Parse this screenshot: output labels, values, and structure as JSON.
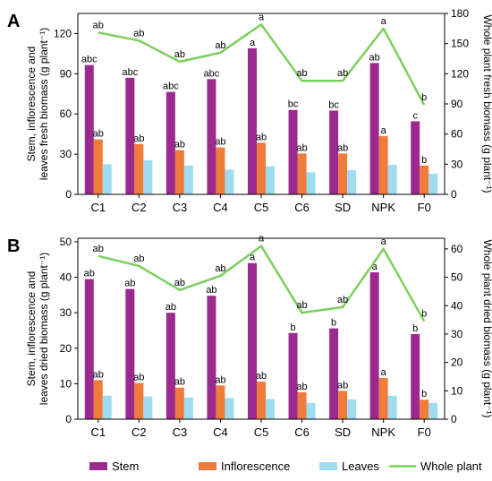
{
  "legend": {
    "items": [
      {
        "label": "Stem",
        "color": "#9b2a8f",
        "kind": "bar"
      },
      {
        "label": "Inflorescence",
        "color": "#f07c3c",
        "kind": "bar"
      },
      {
        "label": "Leaves",
        "color": "#9fdcf2",
        "kind": "bar"
      },
      {
        "label": "Whole plant",
        "color": "#7ccf5c",
        "kind": "line"
      }
    ]
  },
  "chart_data": [
    {
      "type": "bar",
      "panel": "A",
      "categories": [
        "C1",
        "C2",
        "C3",
        "C4",
        "C5",
        "C6",
        "SD",
        "NPK",
        "F0"
      ],
      "ylabel": "Stem, inflorescence and leaves fresh biomass (g plant⁻¹)",
      "y2label": "Whole plant fresh biomass (g plant⁻¹)",
      "ylim": [
        0,
        135
      ],
      "yticks": [
        0,
        30,
        60,
        90,
        120
      ],
      "y2lim": [
        0,
        180
      ],
      "y2ticks": [
        0,
        30,
        60,
        90,
        120,
        150,
        180
      ],
      "series": [
        {
          "name": "Stem",
          "values": [
            96.5,
            87,
            76.5,
            86,
            109,
            63,
            62.5,
            98,
            54.5
          ],
          "labels": [
            "abc",
            "abc",
            "abc",
            "abc",
            "a",
            "bc",
            "bc",
            "ab",
            "c"
          ]
        },
        {
          "name": "Inflorescence",
          "values": [
            41,
            37.5,
            33,
            35,
            38.5,
            30.5,
            30.5,
            43.5,
            21.5
          ],
          "labels": [
            "ab",
            "ab",
            "ab",
            "ab",
            "ab",
            "ab",
            "ab",
            "a",
            "b"
          ]
        },
        {
          "name": "Leaves",
          "values": [
            22.5,
            25.5,
            21.5,
            18.5,
            21,
            16.5,
            18,
            22,
            15.5
          ]
        },
        {
          "name": "Whole plant",
          "axis": "right",
          "values": [
            161,
            153,
            132,
            141,
            169,
            113,
            113,
            165,
            89
          ],
          "labels": [
            "ab",
            "ab",
            "ab",
            "ab",
            "a",
            "ab",
            "ab",
            "a",
            "b"
          ]
        }
      ]
    },
    {
      "type": "bar",
      "panel": "B",
      "categories": [
        "C1",
        "C2",
        "C3",
        "C4",
        "C5",
        "C6",
        "SD",
        "NPK",
        "F0"
      ],
      "ylabel": "Stem, inflorescence and leaves dried biomass (g plant⁻¹)",
      "y2label": "Whole plant dried biomass (g plant⁻¹)",
      "ylim": [
        0,
        51
      ],
      "yticks": [
        0,
        10,
        20,
        30,
        40,
        50
      ],
      "y2lim": [
        0,
        63.75
      ],
      "y2ticks": [
        0,
        10,
        20,
        30,
        40,
        50,
        60
      ],
      "series": [
        {
          "name": "Stem",
          "values": [
            39.5,
            36.7,
            30,
            34.8,
            44,
            24.3,
            25.6,
            41.4,
            24
          ],
          "labels": [
            "ab",
            "ab",
            "ab",
            "ab",
            "a",
            "b",
            "b",
            "a",
            "b"
          ]
        },
        {
          "name": "Inflorescence",
          "values": [
            11,
            10.2,
            8.9,
            9.5,
            10.6,
            7.6,
            8,
            11.6,
            5.5
          ],
          "labels": [
            "ab",
            "ab",
            "ab",
            "ab",
            "ab",
            "ab",
            "ab",
            "a",
            "b"
          ]
        },
        {
          "name": "Leaves",
          "values": [
            6.6,
            6.4,
            6.1,
            6,
            5.7,
            4.6,
            5.6,
            6.6,
            4.6
          ]
        },
        {
          "name": "Whole plant",
          "axis": "right",
          "values": [
            57.5,
            54,
            45.5,
            50.5,
            61,
            37.5,
            39.5,
            60,
            34.5
          ],
          "labels": [
            "ab",
            "ab",
            "ab",
            "ab",
            "a",
            "ab",
            "ab",
            "a",
            "b"
          ]
        }
      ]
    }
  ]
}
